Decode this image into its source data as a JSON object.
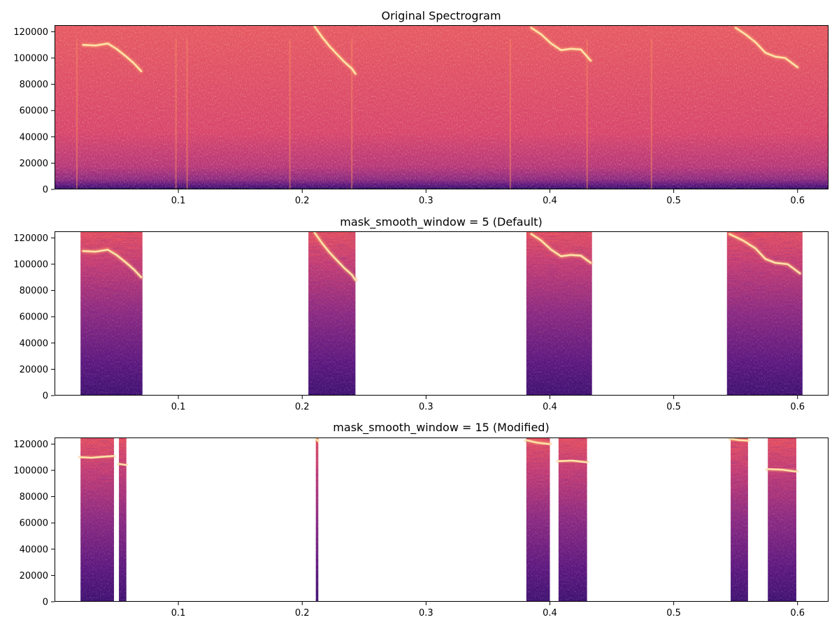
{
  "colors": {
    "colormap": "magma",
    "background": "#ffffff",
    "axes": "#000000"
  },
  "chart_data": [
    {
      "type": "heatmap",
      "title": "Original Spectrogram",
      "xlim": [
        0.0,
        0.625
      ],
      "ylim": [
        0,
        125000
      ],
      "x_ticks": [
        0.1,
        0.2,
        0.3,
        0.4,
        0.5,
        0.6
      ],
      "x_tick_labels": [
        "0.1",
        "0.2",
        "0.3",
        "0.4",
        "0.5",
        "0.6"
      ],
      "y_ticks": [
        0,
        20000,
        40000,
        60000,
        80000,
        100000,
        120000
      ],
      "y_tick_labels": [
        "0",
        "20000",
        "40000",
        "60000",
        "80000",
        "100000",
        "120000"
      ],
      "masked_regions": [],
      "calls": [
        {
          "x": [
            0.023,
            0.033,
            0.043,
            0.05,
            0.058,
            0.064,
            0.07
          ],
          "y": [
            110000,
            109500,
            111000,
            107000,
            101000,
            96000,
            90000
          ]
        },
        {
          "x": [
            0.21,
            0.216,
            0.222,
            0.228,
            0.234,
            0.24,
            0.243
          ],
          "y": [
            124000,
            116000,
            109000,
            103000,
            97000,
            92000,
            88000
          ]
        },
        {
          "x": [
            0.385,
            0.393,
            0.401,
            0.409,
            0.417,
            0.425,
            0.433
          ],
          "y": [
            123000,
            118000,
            111000,
            106000,
            107000,
            106500,
            98000
          ]
        },
        {
          "x": [
            0.55,
            0.558,
            0.566,
            0.574,
            0.582,
            0.59,
            0.6
          ],
          "y": [
            123000,
            118000,
            112000,
            104000,
            101000,
            100000,
            93000
          ]
        }
      ],
      "vertical_lines": [
        0.018,
        0.098,
        0.107,
        0.19,
        0.24,
        0.368,
        0.43,
        0.482
      ]
    },
    {
      "type": "heatmap",
      "title": "mask_smooth_window = 5 (Default)",
      "xlim": [
        0.0,
        0.625
      ],
      "ylim": [
        0,
        125000
      ],
      "x_ticks": [
        0.1,
        0.2,
        0.3,
        0.4,
        0.5,
        0.6
      ],
      "x_tick_labels": [
        "0.1",
        "0.2",
        "0.3",
        "0.4",
        "0.5",
        "0.6"
      ],
      "y_ticks": [
        0,
        20000,
        40000,
        60000,
        80000,
        100000,
        120000
      ],
      "y_tick_labels": [
        "0",
        "20000",
        "40000",
        "60000",
        "80000",
        "100000",
        "120000"
      ],
      "masked_regions": [
        [
          0.021,
          0.071
        ],
        [
          0.205,
          0.243
        ],
        [
          0.381,
          0.434
        ],
        [
          0.543,
          0.604
        ]
      ],
      "calls": [
        {
          "x": [
            0.023,
            0.033,
            0.043,
            0.05,
            0.058,
            0.064,
            0.07
          ],
          "y": [
            110000,
            109500,
            111000,
            107000,
            101000,
            96000,
            90000
          ]
        },
        {
          "x": [
            0.21,
            0.216,
            0.222,
            0.228,
            0.234,
            0.24,
            0.243
          ],
          "y": [
            124000,
            116000,
            109000,
            103000,
            97000,
            92000,
            88000
          ]
        },
        {
          "x": [
            0.385,
            0.393,
            0.401,
            0.409,
            0.417,
            0.425,
            0.433
          ],
          "y": [
            123000,
            118000,
            111000,
            106000,
            107000,
            106500,
            101000
          ]
        },
        {
          "x": [
            0.545,
            0.556,
            0.566,
            0.574,
            0.582,
            0.592,
            0.602
          ],
          "y": [
            123000,
            118000,
            112000,
            104000,
            101000,
            100000,
            93000
          ]
        }
      ],
      "vertical_lines": []
    },
    {
      "type": "heatmap",
      "title": "mask_smooth_window = 15 (Modified)",
      "xlim": [
        0.0,
        0.625
      ],
      "ylim": [
        0,
        125000
      ],
      "x_ticks": [
        0.1,
        0.2,
        0.3,
        0.4,
        0.5,
        0.6
      ],
      "x_tick_labels": [
        "0.1",
        "0.2",
        "0.3",
        "0.4",
        "0.5",
        "0.6"
      ],
      "y_ticks": [
        0,
        20000,
        40000,
        60000,
        80000,
        100000,
        120000
      ],
      "y_tick_labels": [
        "0",
        "20000",
        "40000",
        "60000",
        "80000",
        "100000",
        "120000"
      ],
      "masked_regions": [
        [
          0.021,
          0.048
        ],
        [
          0.052,
          0.058
        ],
        [
          0.211,
          0.213
        ],
        [
          0.381,
          0.4
        ],
        [
          0.407,
          0.43
        ],
        [
          0.546,
          0.56
        ],
        [
          0.576,
          0.599
        ]
      ],
      "calls": [
        {
          "x": [
            0.021,
            0.03,
            0.04,
            0.048
          ],
          "y": [
            110000,
            109500,
            110500,
            111000
          ]
        },
        {
          "x": [
            0.052,
            0.058
          ],
          "y": [
            105000,
            104000
          ]
        },
        {
          "x": [
            0.211,
            0.213
          ],
          "y": [
            124000,
            122000
          ]
        },
        {
          "x": [
            0.381,
            0.39,
            0.4
          ],
          "y": [
            123000,
            121000,
            120000
          ]
        },
        {
          "x": [
            0.407,
            0.418,
            0.43
          ],
          "y": [
            107000,
            107500,
            106000
          ]
        },
        {
          "x": [
            0.546,
            0.553,
            0.56
          ],
          "y": [
            124000,
            123000,
            122500
          ]
        },
        {
          "x": [
            0.576,
            0.588,
            0.599
          ],
          "y": [
            101000,
            100500,
            99000
          ]
        }
      ],
      "vertical_lines": []
    }
  ]
}
